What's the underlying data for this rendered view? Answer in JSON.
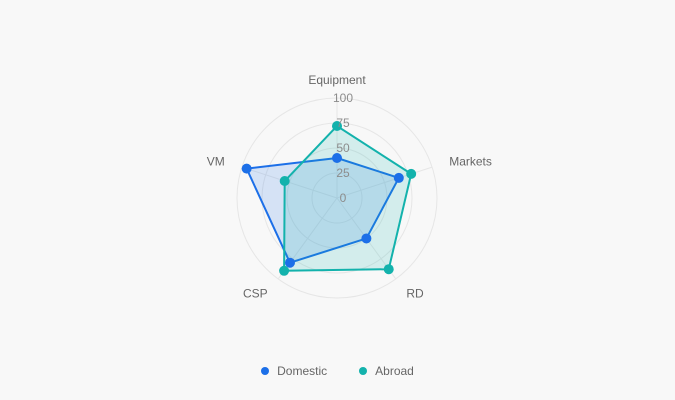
{
  "chart_data": {
    "type": "radar",
    "indicators": [
      "Equipment",
      "Markets",
      "RD",
      "CSP",
      "VM"
    ],
    "ticks": [
      "0",
      "25",
      "50",
      "75",
      "100"
    ],
    "range": [
      0,
      100
    ],
    "series": [
      {
        "name": "Domestic",
        "values": [
          40,
          65,
          50,
          80,
          95
        ],
        "color": "#1c6fe8"
      },
      {
        "name": "Abroad",
        "values": [
          72,
          78,
          88,
          90,
          55
        ],
        "color": "#13b2ac"
      }
    ],
    "legend_position": "bottom-center",
    "grid": true
  }
}
